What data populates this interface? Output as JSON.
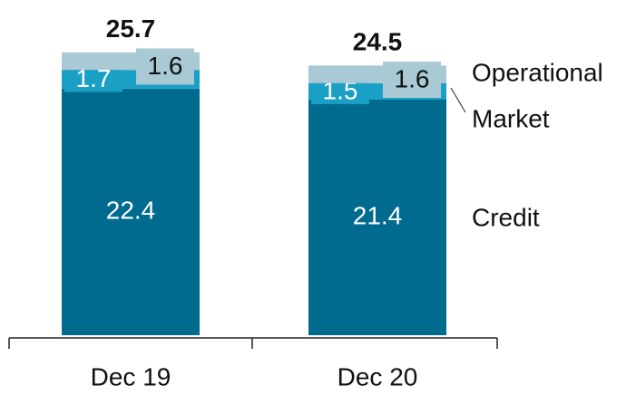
{
  "chart_data": {
    "type": "stacked_bar",
    "categories": [
      "Dec 19",
      "Dec 20"
    ],
    "series": [
      {
        "name": "Credit",
        "color": "#006b8f",
        "values": [
          22.4,
          21.4
        ]
      },
      {
        "name": "Market",
        "color": "#1aa0c4",
        "values": [
          1.7,
          1.5
        ]
      },
      {
        "name": "Operational",
        "color": "#a9c9d5",
        "values": [
          1.6,
          1.6
        ]
      }
    ],
    "totals": [
      25.7,
      24.5
    ],
    "ylim": [
      0,
      30
    ]
  }
}
